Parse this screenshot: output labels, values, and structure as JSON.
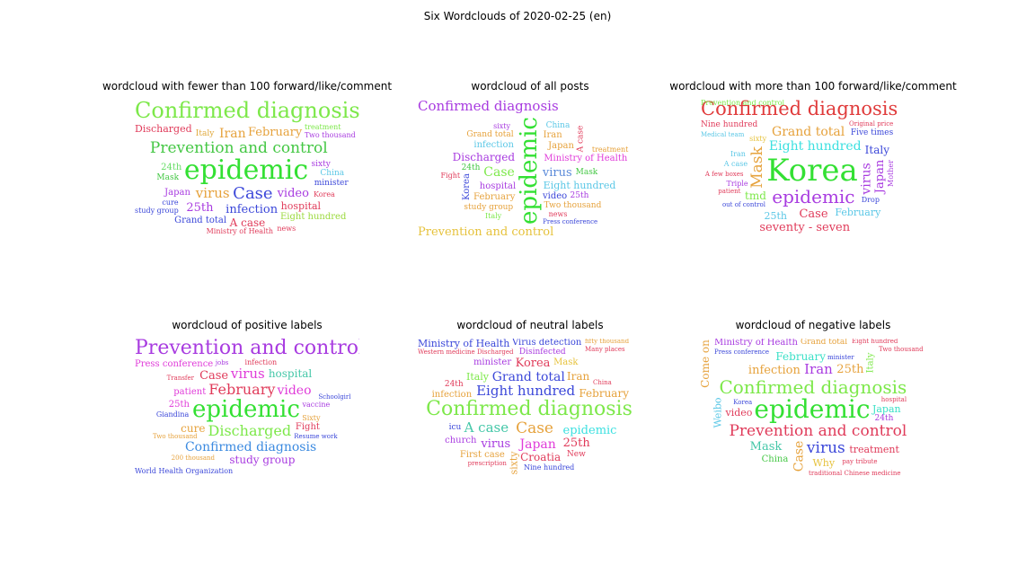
{
  "title": "Six Wordclouds of 2020-02-25 (en)",
  "panels": [
    {
      "title": "wordcloud with fewer than 100 forward/like/comment",
      "words": [
        {
          "text": "epidemic",
          "size": 30,
          "color": "#33e033"
        },
        {
          "text": "Confirmed diagnosis",
          "size": 24,
          "color": "#7de84a"
        },
        {
          "text": "Prevention and control",
          "size": 17,
          "color": "#44c744"
        },
        {
          "text": "Case",
          "size": 18,
          "color": "#3b47d9"
        },
        {
          "text": "virus",
          "size": 15,
          "color": "#e6a23c"
        },
        {
          "text": "infection",
          "size": 13,
          "color": "#3b47d9"
        },
        {
          "text": "video",
          "size": 13,
          "color": "#a83be0"
        },
        {
          "text": "February",
          "size": 13,
          "color": "#e6a23c"
        },
        {
          "text": "Iran",
          "size": 14,
          "color": "#e6a23c"
        },
        {
          "text": "25th",
          "size": 13,
          "color": "#a83be0"
        },
        {
          "text": "A case",
          "size": 12,
          "color": "#e03b5a"
        },
        {
          "text": "Discharged",
          "size": 11,
          "color": "#e03b5a"
        },
        {
          "text": "hospital",
          "size": 11,
          "color": "#e03b5a"
        },
        {
          "text": "Japan",
          "size": 10,
          "color": "#a83be0"
        },
        {
          "text": "Grand total",
          "size": 10,
          "color": "#3b47d9"
        },
        {
          "text": "Eight hundred",
          "size": 10,
          "color": "#9ad93b"
        },
        {
          "text": "24th",
          "size": 10,
          "color": "#66dd66"
        },
        {
          "text": "Italy",
          "size": 9,
          "color": "#e0a83b"
        },
        {
          "text": "sixty",
          "size": 9,
          "color": "#a83be0"
        },
        {
          "text": "minister",
          "size": 9,
          "color": "#3b47d9"
        },
        {
          "text": "Mask",
          "size": 9,
          "color": "#44c744"
        },
        {
          "text": "China",
          "size": 9,
          "color": "#5ac7e6"
        },
        {
          "text": "Korea",
          "size": 8,
          "color": "#e03b5a"
        },
        {
          "text": "cure",
          "size": 8,
          "color": "#3b47d9"
        },
        {
          "text": "Ministry of Health",
          "size": 8,
          "color": "#e03b5a"
        },
        {
          "text": "treatment",
          "size": 8,
          "color": "#7de84a"
        },
        {
          "text": "Two thousand",
          "size": 8,
          "color": "#a83be0"
        },
        {
          "text": "study group",
          "size": 8,
          "color": "#3b47d9"
        },
        {
          "text": "news",
          "size": 8,
          "color": "#e03b5a"
        }
      ]
    },
    {
      "title": "wordcloud of all posts",
      "words": [
        {
          "text": "epidemic",
          "size": 26,
          "color": "#33e033",
          "vertical": true
        },
        {
          "text": "Confirmed diagnosis",
          "size": 15,
          "color": "#a83be0"
        },
        {
          "text": "Prevention and control",
          "size": 13,
          "color": "#e6c23c"
        },
        {
          "text": "Case",
          "size": 14,
          "color": "#7de84a"
        },
        {
          "text": "virus",
          "size": 13,
          "color": "#5a8ad9"
        },
        {
          "text": "Discharged",
          "size": 12,
          "color": "#a83be0"
        },
        {
          "text": "Eight hundred",
          "size": 11,
          "color": "#5ac7e6"
        },
        {
          "text": "Ministry of Health",
          "size": 10,
          "color": "#e03bd9"
        },
        {
          "text": "hospital",
          "size": 10,
          "color": "#a83be0"
        },
        {
          "text": "Japan",
          "size": 10,
          "color": "#e6a23c"
        },
        {
          "text": "Two thousand",
          "size": 9,
          "color": "#e6a23c"
        },
        {
          "text": "February",
          "size": 10,
          "color": "#e6a23c"
        },
        {
          "text": "video",
          "size": 10,
          "color": "#3b47d9"
        },
        {
          "text": "infection",
          "size": 10,
          "color": "#5ac7e6"
        },
        {
          "text": "Iran",
          "size": 10,
          "color": "#e6a23c"
        },
        {
          "text": "Korea",
          "size": 10,
          "color": "#3b47d9",
          "vertical": true
        },
        {
          "text": "Grand total",
          "size": 9,
          "color": "#e6a23c"
        },
        {
          "text": "study group",
          "size": 9,
          "color": "#e6a23c"
        },
        {
          "text": "Mask",
          "size": 9,
          "color": "#44c744"
        },
        {
          "text": "24th",
          "size": 9,
          "color": "#44c744"
        },
        {
          "text": "25th",
          "size": 9,
          "color": "#a83be0"
        },
        {
          "text": "China",
          "size": 9,
          "color": "#5ac7e6"
        },
        {
          "text": "news",
          "size": 8,
          "color": "#e03b5a"
        },
        {
          "text": "sixty",
          "size": 8,
          "color": "#a83be0"
        },
        {
          "text": "Italy",
          "size": 8,
          "color": "#7de84a"
        },
        {
          "text": "treatment",
          "size": 8,
          "color": "#e6a23c"
        },
        {
          "text": "Fight",
          "size": 8,
          "color": "#e03b5a"
        },
        {
          "text": "A case",
          "size": 9,
          "color": "#e03b5a",
          "vertical": true
        },
        {
          "text": "Press conference",
          "size": 7,
          "color": "#3b47d9"
        }
      ]
    },
    {
      "title": "wordcloud with more than 100 forward/like/comment",
      "words": [
        {
          "text": "Korea",
          "size": 34,
          "color": "#33e033"
        },
        {
          "text": "Confirmed diagnosis",
          "size": 21,
          "color": "#e03b3b"
        },
        {
          "text": "epidemic",
          "size": 20,
          "color": "#a83be0"
        },
        {
          "text": "Eight hundred",
          "size": 14,
          "color": "#3be0e0"
        },
        {
          "text": "Case",
          "size": 13,
          "color": "#e03b5a"
        },
        {
          "text": "seventy - seven",
          "size": 13,
          "color": "#e03b5a"
        },
        {
          "text": "Grand total",
          "size": 14,
          "color": "#e6a23c"
        },
        {
          "text": "Mask",
          "size": 17,
          "color": "#e6a23c",
          "vertical": true
        },
        {
          "text": "Japan",
          "size": 13,
          "color": "#a83be0",
          "vertical": true
        },
        {
          "text": "virus",
          "size": 14,
          "color": "#a83be0",
          "vertical": true
        },
        {
          "text": "February",
          "size": 11,
          "color": "#5ac7e6"
        },
        {
          "text": "Italy",
          "size": 12,
          "color": "#3b47d9"
        },
        {
          "text": "tmd",
          "size": 12,
          "color": "#7de84a"
        },
        {
          "text": "25th",
          "size": 11,
          "color": "#5ac7e6"
        },
        {
          "text": "Nine hundred",
          "size": 9,
          "color": "#e03b5a"
        },
        {
          "text": "Prevention and control",
          "size": 8,
          "color": "#7de84a"
        },
        {
          "text": "Five times",
          "size": 9,
          "color": "#3b47d9"
        },
        {
          "text": "Triple",
          "size": 8,
          "color": "#a83be0"
        },
        {
          "text": "A case",
          "size": 8,
          "color": "#5ac7e6"
        },
        {
          "text": "Drop",
          "size": 8,
          "color": "#3b47d9"
        },
        {
          "text": "A few boxes",
          "size": 7,
          "color": "#e03b5a"
        },
        {
          "text": "sixty",
          "size": 8,
          "color": "#e6c23c"
        },
        {
          "text": "Iran",
          "size": 8,
          "color": "#5ac7e6"
        },
        {
          "text": "Mother",
          "size": 8,
          "color": "#a83be0",
          "vertical": true
        },
        {
          "text": "Original price",
          "size": 7,
          "color": "#e03b5a"
        },
        {
          "text": "out of control",
          "size": 7,
          "color": "#3b47d9"
        },
        {
          "text": "patient",
          "size": 7,
          "color": "#e03b5a"
        },
        {
          "text": "Medical team",
          "size": 7,
          "color": "#5ac7e6"
        }
      ]
    },
    {
      "title": "wordcloud of positive labels",
      "words": [
        {
          "text": "Prevention and control",
          "size": 22,
          "color": "#a83be0"
        },
        {
          "text": "epidemic",
          "size": 26,
          "color": "#33e033"
        },
        {
          "text": "February",
          "size": 16,
          "color": "#e03b5a"
        },
        {
          "text": "Discharged",
          "size": 16,
          "color": "#7de84a"
        },
        {
          "text": "Confirmed diagnosis",
          "size": 14,
          "color": "#3b8ae0"
        },
        {
          "text": "virus",
          "size": 15,
          "color": "#e03bd9"
        },
        {
          "text": "study group",
          "size": 12,
          "color": "#a83be0"
        },
        {
          "text": "video",
          "size": 14,
          "color": "#e03bd9"
        },
        {
          "text": "hospital",
          "size": 12,
          "color": "#44c7a8"
        },
        {
          "text": "Case",
          "size": 13,
          "color": "#e03b5a"
        },
        {
          "text": "cure",
          "size": 12,
          "color": "#e6a23c"
        },
        {
          "text": "patient",
          "size": 10,
          "color": "#e03bd9"
        },
        {
          "text": "Fight",
          "size": 10,
          "color": "#e03b5a"
        },
        {
          "text": "25th",
          "size": 10,
          "color": "#e03bd9"
        },
        {
          "text": "Press conference",
          "size": 10,
          "color": "#e03bd9"
        },
        {
          "text": "World Health Organization",
          "size": 8,
          "color": "#3b47d9"
        },
        {
          "text": "vaccine",
          "size": 8,
          "color": "#a83be0"
        },
        {
          "text": "infection",
          "size": 8,
          "color": "#e03b5a"
        },
        {
          "text": "Giandina",
          "size": 8,
          "color": "#3b47d9"
        },
        {
          "text": "Sixty",
          "size": 8,
          "color": "#e6a23c"
        },
        {
          "text": "Two thousand",
          "size": 7,
          "color": "#e6a23c"
        },
        {
          "text": "Resume work",
          "size": 7,
          "color": "#3b47d9"
        },
        {
          "text": "200 thousand",
          "size": 7,
          "color": "#e6a23c"
        },
        {
          "text": "Transfer",
          "size": 7,
          "color": "#e03b5a"
        },
        {
          "text": "Schoolgirl",
          "size": 7,
          "color": "#3b47d9"
        },
        {
          "text": "jobs",
          "size": 7,
          "color": "#a83be0"
        }
      ]
    },
    {
      "title": "wordcloud of neutral labels",
      "words": [
        {
          "text": "Confirmed diagnosis",
          "size": 22,
          "color": "#7de84a"
        },
        {
          "text": "Eight hundred",
          "size": 15,
          "color": "#3b47d9"
        },
        {
          "text": "Grand total",
          "size": 14,
          "color": "#3b47d9"
        },
        {
          "text": "epidemic",
          "size": 13,
          "color": "#3be0e0"
        },
        {
          "text": "A case",
          "size": 15,
          "color": "#44c7a8"
        },
        {
          "text": "Case",
          "size": 17,
          "color": "#e6a23c"
        },
        {
          "text": "Japan",
          "size": 14,
          "color": "#e03bd9"
        },
        {
          "text": "virus",
          "size": 13,
          "color": "#a83be0"
        },
        {
          "text": "Korea",
          "size": 13,
          "color": "#e03b5a"
        },
        {
          "text": "25th",
          "size": 13,
          "color": "#e03b5a"
        },
        {
          "text": "Croatia",
          "size": 12,
          "color": "#e03b5a"
        },
        {
          "text": "February",
          "size": 12,
          "color": "#e6a23c"
        },
        {
          "text": "Ministry of Health",
          "size": 11,
          "color": "#3b47d9"
        },
        {
          "text": "Virus detection",
          "size": 10,
          "color": "#3b47d9"
        },
        {
          "text": "minister",
          "size": 10,
          "color": "#a83be0"
        },
        {
          "text": "Iran",
          "size": 12,
          "color": "#e6a23c"
        },
        {
          "text": "Italy",
          "size": 11,
          "color": "#7de84a"
        },
        {
          "text": "infection",
          "size": 10,
          "color": "#e6a23c"
        },
        {
          "text": "First case",
          "size": 10,
          "color": "#e6a23c"
        },
        {
          "text": "church",
          "size": 10,
          "color": "#a83be0"
        },
        {
          "text": "Mask",
          "size": 10,
          "color": "#e6c23c"
        },
        {
          "text": "sixty",
          "size": 11,
          "color": "#e6a23c",
          "vertical": true
        },
        {
          "text": "24th",
          "size": 9,
          "color": "#e03b5a"
        },
        {
          "text": "Nine hundred",
          "size": 8,
          "color": "#3b47d9"
        },
        {
          "text": "New",
          "size": 9,
          "color": "#e03b5a"
        },
        {
          "text": "fifty thousand",
          "size": 7,
          "color": "#e6a23c"
        },
        {
          "text": "Western medicine",
          "size": 7,
          "color": "#e03b5a"
        },
        {
          "text": "icu",
          "size": 9,
          "color": "#3b47d9"
        },
        {
          "text": "Many places",
          "size": 7,
          "color": "#e03b5a"
        },
        {
          "text": "Disinfected",
          "size": 9,
          "color": "#a83be0"
        },
        {
          "text": "Discharged",
          "size": 7,
          "color": "#e03b5a"
        },
        {
          "text": "prescription",
          "size": 7,
          "color": "#e03b5a"
        },
        {
          "text": "China",
          "size": 7,
          "color": "#e03b5a"
        }
      ]
    },
    {
      "title": "wordcloud of negative labels",
      "words": [
        {
          "text": "epidemic",
          "size": 28,
          "color": "#33e033"
        },
        {
          "text": "Confirmed diagnosis",
          "size": 20,
          "color": "#7de84a"
        },
        {
          "text": "Prevention and control",
          "size": 17,
          "color": "#e03b5a"
        },
        {
          "text": "virus",
          "size": 17,
          "color": "#3b47d9"
        },
        {
          "text": "Iran",
          "size": 15,
          "color": "#a83be0"
        },
        {
          "text": "Case",
          "size": 14,
          "color": "#e6a23c",
          "vertical": true
        },
        {
          "text": "Come on",
          "size": 12,
          "color": "#e6a23c",
          "vertical": true
        },
        {
          "text": "Weibo",
          "size": 11,
          "color": "#5ac7e6",
          "vertical": true
        },
        {
          "text": "infection",
          "size": 13,
          "color": "#e6a23c"
        },
        {
          "text": "Mask",
          "size": 13,
          "color": "#44c7a8"
        },
        {
          "text": "February",
          "size": 12,
          "color": "#3be0c7"
        },
        {
          "text": "treatment",
          "size": 11,
          "color": "#e03b5a"
        },
        {
          "text": "25th",
          "size": 13,
          "color": "#e6a23c"
        },
        {
          "text": "video",
          "size": 11,
          "color": "#e03b5a"
        },
        {
          "text": "Japan",
          "size": 11,
          "color": "#3be0c7"
        },
        {
          "text": "Why",
          "size": 11,
          "color": "#e6c23c"
        },
        {
          "text": "China",
          "size": 10,
          "color": "#44c744"
        },
        {
          "text": "24th",
          "size": 9,
          "color": "#a83be0"
        },
        {
          "text": "Grand total",
          "size": 9,
          "color": "#e6a23c"
        },
        {
          "text": "Italy",
          "size": 10,
          "color": "#7de84a",
          "vertical": true
        },
        {
          "text": "Ministry of Health",
          "size": 10,
          "color": "#a83be0"
        },
        {
          "text": "hospital",
          "size": 7,
          "color": "#e03b5a"
        },
        {
          "text": "Eight hundred",
          "size": 7,
          "color": "#e03b5a"
        },
        {
          "text": "Two thousand",
          "size": 7,
          "color": "#e03b5a"
        },
        {
          "text": "pay tribute",
          "size": 7,
          "color": "#e03b5a"
        },
        {
          "text": "minister",
          "size": 7,
          "color": "#3b47d9"
        },
        {
          "text": "Korea",
          "size": 7,
          "color": "#3b47d9"
        },
        {
          "text": "Press conference",
          "size": 7,
          "color": "#3b47d9"
        },
        {
          "text": "traditional Chinese medicine",
          "size": 7,
          "color": "#e03b5a"
        }
      ]
    }
  ]
}
